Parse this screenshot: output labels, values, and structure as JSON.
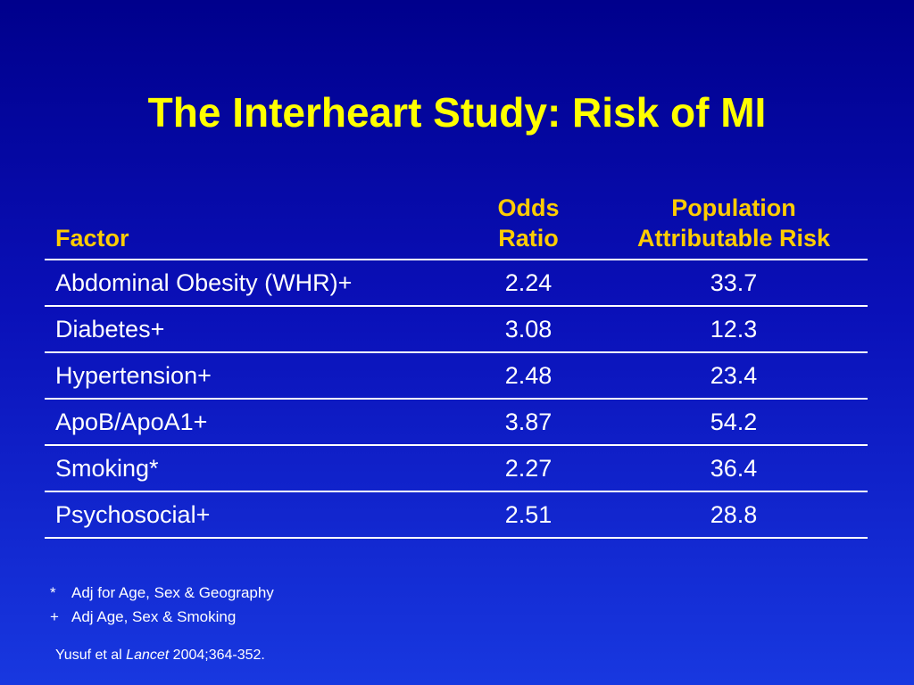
{
  "slide": {
    "title": "The Interheart Study: Risk of MI"
  },
  "table": {
    "headers": {
      "factor": "Factor",
      "odds_ratio_line1": "Odds",
      "odds_ratio_line2": "Ratio",
      "par_line1": "Population",
      "par_line2": "Attributable Risk"
    },
    "rows": [
      {
        "factor": "Abdominal Obesity (WHR)+",
        "odds_ratio": "2.24",
        "par": "33.7"
      },
      {
        "factor": "Diabetes+",
        "odds_ratio": "3.08",
        "par": "12.3"
      },
      {
        "factor": "Hypertension+",
        "odds_ratio": "2.48",
        "par": "23.4"
      },
      {
        "factor": "ApoB/ApoA1+",
        "odds_ratio": "3.87",
        "par": "54.2"
      },
      {
        "factor": "Smoking*",
        "odds_ratio": "2.27",
        "par": "36.4"
      },
      {
        "factor": "Psychosocial+",
        "odds_ratio": "2.51",
        "par": "28.8"
      }
    ]
  },
  "footnotes": [
    {
      "mark": "*",
      "text": "Adj for Age, Sex & Geography"
    },
    {
      "mark": "+",
      "text": "Adj Age, Sex & Smoking"
    }
  ],
  "citation": {
    "authors": "Yusuf et al",
    "journal": "Lancet",
    "details": "2004;364-352."
  },
  "colors": {
    "title": "#ffff00",
    "header": "#ffcc00",
    "background_top": "#00008c",
    "background_bottom": "#1838e0",
    "text": "#ffffff"
  }
}
